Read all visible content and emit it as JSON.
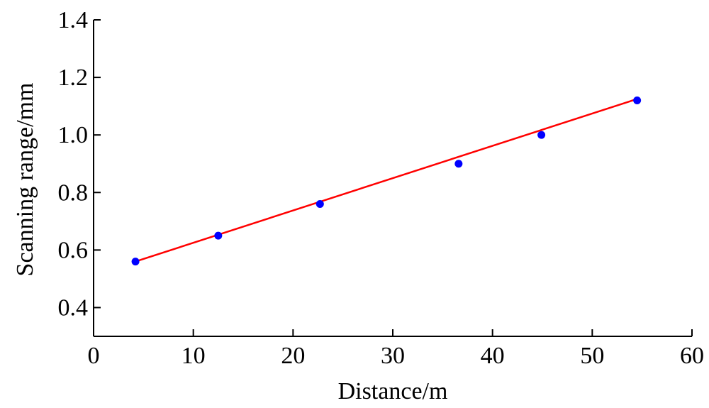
{
  "chart_data": {
    "type": "scatter",
    "xlabel": "Distance/m",
    "ylabel": "Scanning range/mm",
    "xlim": [
      0,
      60
    ],
    "ylim": [
      0.3,
      1.4
    ],
    "x_ticks": [
      0,
      10,
      20,
      30,
      40,
      50,
      60
    ],
    "x_tick_labels": [
      "0",
      "10",
      "20",
      "30",
      "40",
      "50",
      "60"
    ],
    "y_ticks": [
      0.4,
      0.6,
      0.8,
      1.0,
      1.2,
      1.4
    ],
    "y_tick_labels": [
      "0.4",
      "0.6",
      "0.8",
      "1.0",
      "1.2",
      "1.4"
    ],
    "grid": false,
    "series": [
      {
        "kind": "points",
        "color": "#0000ff",
        "x": [
          4.2,
          12.5,
          22.7,
          36.6,
          44.9,
          54.5
        ],
        "y": [
          0.56,
          0.65,
          0.76,
          0.9,
          1.0,
          1.12
        ]
      },
      {
        "kind": "fit-line",
        "color": "#ff0000",
        "x": [
          4.2,
          54.5
        ],
        "y": [
          0.56,
          1.125
        ]
      }
    ]
  }
}
